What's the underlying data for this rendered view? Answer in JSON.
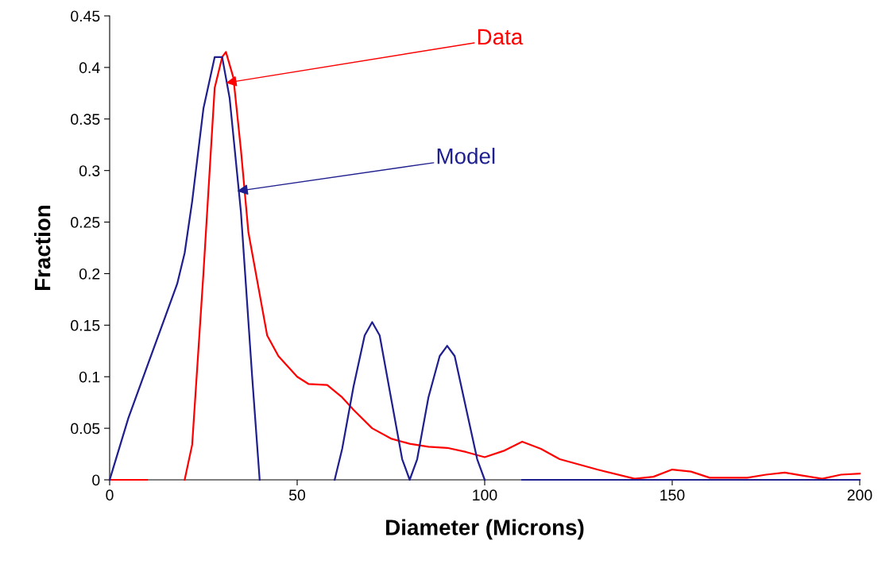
{
  "chart_data": {
    "type": "line",
    "xlabel": "Diameter (Microns)",
    "ylabel": "Fraction",
    "xlim": [
      0,
      200
    ],
    "xticks": [
      0,
      50,
      100,
      150,
      200
    ],
    "ylim": [
      0,
      0.45
    ],
    "yticks": [
      0,
      0.05,
      0.1,
      0.15,
      0.2,
      0.25,
      0.3,
      0.35,
      0.4,
      0.45
    ],
    "grid": false,
    "legend": false,
    "marker": "none",
    "line_style": "solid",
    "series": [
      {
        "color": "#ff0000",
        "x": [
          0,
          5,
          10,
          15,
          20,
          22,
          25,
          28,
          30,
          31,
          33,
          35,
          37,
          40,
          42,
          45,
          50,
          53,
          58,
          62,
          65,
          70,
          75,
          80,
          85,
          90,
          95,
          100,
          105,
          110,
          115,
          120,
          130,
          140,
          145,
          150,
          155,
          160,
          170,
          175,
          180,
          185,
          190,
          195,
          200
        ],
        "values": [
          0,
          0,
          0,
          null,
          0,
          0.034,
          0.2,
          0.38,
          0.41,
          0.415,
          0.39,
          0.32,
          0.24,
          0.18,
          0.14,
          0.12,
          0.1,
          0.093,
          0.092,
          0.08,
          0.068,
          0.05,
          0.04,
          0.035,
          0.032,
          0.031,
          0.027,
          0.022,
          0.028,
          0.037,
          0.03,
          0.02,
          0.01,
          0.001,
          0.003,
          0.01,
          0.008,
          0.002,
          0.002,
          0.005,
          0.007,
          0.004,
          0.001,
          0.005,
          0.006
        ]
      },
      {
        "color": "#1f1f8f",
        "x": [
          0,
          5,
          10,
          15,
          18,
          20,
          22,
          25,
          28,
          30,
          32,
          35,
          38,
          40,
          50,
          60,
          62,
          65,
          68,
          70,
          72,
          75,
          78,
          80,
          82,
          85,
          88,
          90,
          92,
          95,
          98,
          100,
          105,
          110,
          200
        ],
        "values": [
          0,
          0.06,
          0.11,
          0.16,
          0.19,
          0.22,
          0.27,
          0.36,
          0.41,
          0.41,
          0.37,
          0.26,
          0.1,
          0,
          null,
          0,
          0.03,
          0.09,
          0.14,
          0.153,
          0.14,
          0.08,
          0.02,
          0,
          0.02,
          0.08,
          0.12,
          0.13,
          0.12,
          0.07,
          0.02,
          0,
          null,
          0,
          0
        ]
      }
    ],
    "annotations": [
      {
        "text": "Data",
        "x": 31,
        "y": 0.385
      },
      {
        "text": "Model",
        "x": 34,
        "y": 0.28
      }
    ]
  }
}
